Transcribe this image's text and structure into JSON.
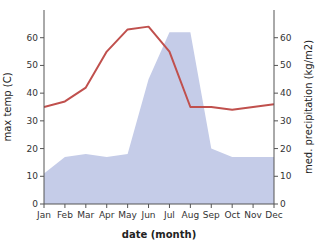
{
  "chart_data": {
    "type": "line",
    "xlabel": "date (month)",
    "ylabel": "max temp (C)",
    "y2label": "med. precipitation (kg/m2)",
    "categories": [
      "Jan",
      "Feb",
      "Mar",
      "Apr",
      "May",
      "Jun",
      "Jul",
      "Aug",
      "Sep",
      "Oct",
      "Nov",
      "Dec"
    ],
    "series": [
      {
        "type": "line",
        "color": "#c0504d",
        "values": [
          35,
          37,
          42,
          55,
          63,
          64,
          55,
          35,
          35,
          34,
          35,
          36
        ]
      },
      {
        "type": "area",
        "color": "#c5cce8",
        "axis": "y2",
        "values": [
          11,
          17,
          18,
          17,
          18,
          45,
          62,
          62,
          20,
          17,
          17,
          17
        ]
      }
    ],
    "ylim": [
      0,
      70
    ],
    "yticks": [
      0,
      10,
      20,
      30,
      40,
      50,
      60
    ],
    "y2lim": [
      0,
      70
    ],
    "y2ticks": [
      0,
      10,
      20,
      30,
      40,
      50,
      60
    ],
    "grid": false
  }
}
